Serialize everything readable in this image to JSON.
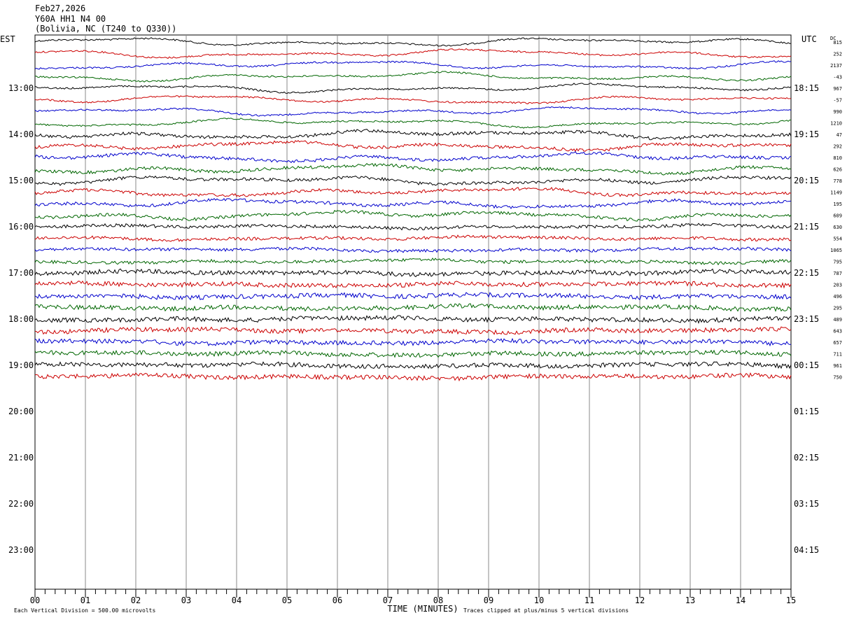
{
  "header": {
    "date": "Feb27,2026",
    "station": "Y60A HH1 N4 00",
    "location": "(Bolivia, NC (T240 to Q330))"
  },
  "chart_data": {
    "type": "line",
    "left_axis_label": "EST",
    "right_axis_label": "UTC",
    "dc_label": "DC",
    "xlabel": "TIME (MINUTES)",
    "x_ticks": [
      "00",
      "01",
      "02",
      "03",
      "04",
      "05",
      "06",
      "07",
      "08",
      "09",
      "10",
      "11",
      "12",
      "13",
      "14",
      "15"
    ],
    "xlim": [
      0,
      15
    ],
    "est_hours": [
      "13:00",
      "14:00",
      "15:00",
      "16:00",
      "17:00",
      "18:00",
      "19:00",
      "20:00",
      "21:00",
      "22:00",
      "23:00"
    ],
    "utc_hours": [
      "18:15",
      "19:15",
      "20:15",
      "21:15",
      "22:15",
      "23:15",
      "00:15",
      "01:15",
      "02:15",
      "03:15",
      "04:15"
    ],
    "trace_colors": [
      "#000000",
      "#cc0000",
      "#0000cc",
      "#006600"
    ],
    "dc_offsets": [
      815,
      252,
      2137,
      -43,
      967,
      -57,
      990,
      1210,
      47,
      292,
      810,
      626,
      778,
      1149,
      195,
      609,
      630,
      554,
      1065,
      795,
      787,
      203,
      496,
      295,
      489,
      643,
      657,
      711,
      961,
      750
    ],
    "footer_left": "Each Vertical Division =  500.00 microvolts",
    "footer_right": "Traces clipped at plus/minus 5 vertical divisions"
  }
}
